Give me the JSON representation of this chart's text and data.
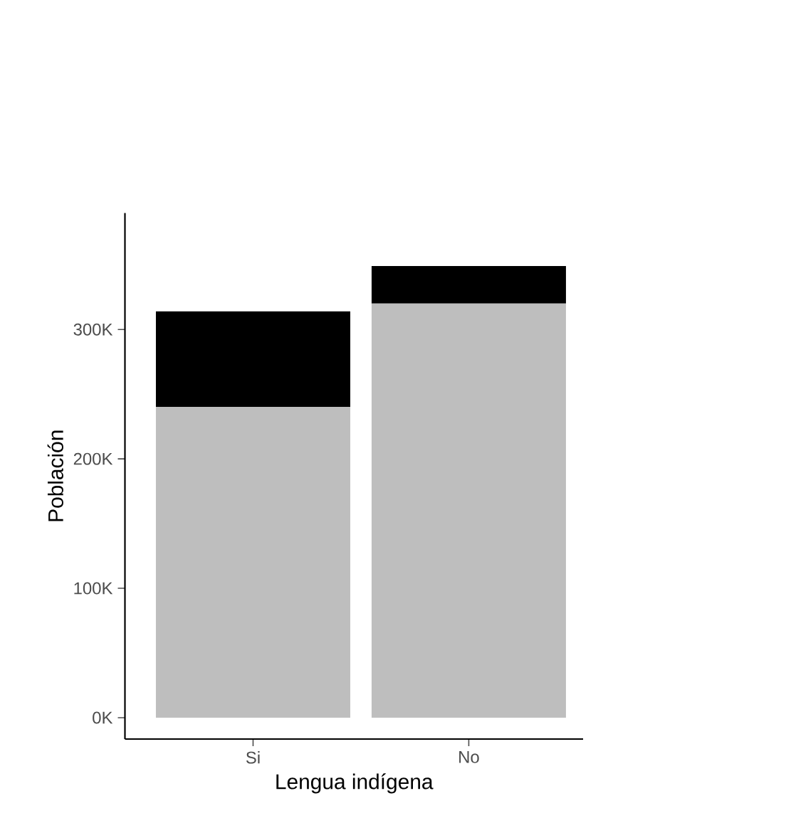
{
  "chart_data": {
    "type": "bar",
    "stacked": true,
    "xlabel": "Lengua indígena",
    "ylabel": "Población",
    "categories": [
      "Si",
      "No"
    ],
    "series": [
      {
        "color": "#bebebe",
        "values": [
          240000,
          320000
        ]
      },
      {
        "color": "#000000",
        "values": [
          74000,
          29000
        ]
      }
    ],
    "ylim": [
      -16500,
      390000
    ],
    "yticks": [
      {
        "value": 0,
        "label": "0K"
      },
      {
        "value": 100000,
        "label": "100K"
      },
      {
        "value": 200000,
        "label": "200K"
      },
      {
        "value": 300000,
        "label": "300K"
      }
    ]
  }
}
